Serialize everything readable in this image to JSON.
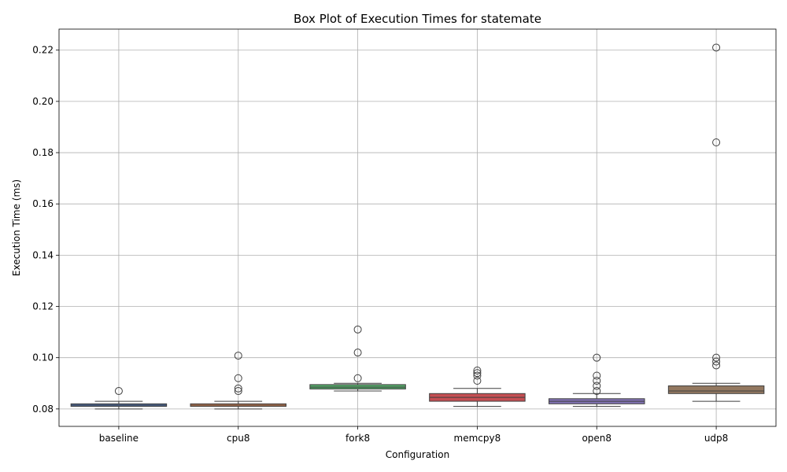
{
  "chart_data": {
    "type": "box",
    "title": "Box Plot of Execution Times for statemate",
    "xlabel": "Configuration",
    "ylabel": "Execution Time (ms)",
    "ylim": [
      0.0732,
      0.2282
    ],
    "yticks": [
      0.08,
      0.1,
      0.12,
      0.14,
      0.16,
      0.18,
      0.2,
      0.22
    ],
    "ytick_labels": [
      "0.08",
      "0.10",
      "0.12",
      "0.14",
      "0.16",
      "0.18",
      "0.20",
      "0.22"
    ],
    "grid": true,
    "categories": [
      "baseline",
      "cpu8",
      "fork8",
      "memcpy8",
      "open8",
      "udp8"
    ],
    "series": [
      {
        "category": "baseline",
        "color": "#4c72b0",
        "whisker_low": 0.08,
        "q1": 0.081,
        "median": 0.0815,
        "q3": 0.082,
        "whisker_high": 0.083,
        "outliers": [
          0.087
        ]
      },
      {
        "category": "cpu8",
        "color": "#dd8452",
        "whisker_low": 0.08,
        "q1": 0.081,
        "median": 0.0815,
        "q3": 0.082,
        "whisker_high": 0.083,
        "outliers": [
          0.1008,
          0.092,
          0.088,
          0.087
        ]
      },
      {
        "category": "fork8",
        "color": "#55a868",
        "whisker_low": 0.087,
        "q1": 0.0878,
        "median": 0.0885,
        "q3": 0.0895,
        "whisker_high": 0.09,
        "outliers": [
          0.111,
          0.102,
          0.092
        ]
      },
      {
        "category": "memcpy8",
        "color": "#c44e52",
        "whisker_low": 0.081,
        "q1": 0.083,
        "median": 0.0845,
        "q3": 0.086,
        "whisker_high": 0.088,
        "outliers": [
          0.095,
          0.094,
          0.093,
          0.091
        ]
      },
      {
        "category": "open8",
        "color": "#8172b3",
        "whisker_low": 0.081,
        "q1": 0.082,
        "median": 0.083,
        "q3": 0.084,
        "whisker_high": 0.086,
        "outliers": [
          0.1,
          0.093,
          0.091,
          0.089,
          0.087
        ]
      },
      {
        "category": "udp8",
        "color": "#937860",
        "whisker_low": 0.083,
        "q1": 0.086,
        "median": 0.087,
        "q3": 0.089,
        "whisker_high": 0.09,
        "outliers": [
          0.221,
          0.184,
          0.1,
          0.0985,
          0.097
        ]
      }
    ]
  }
}
